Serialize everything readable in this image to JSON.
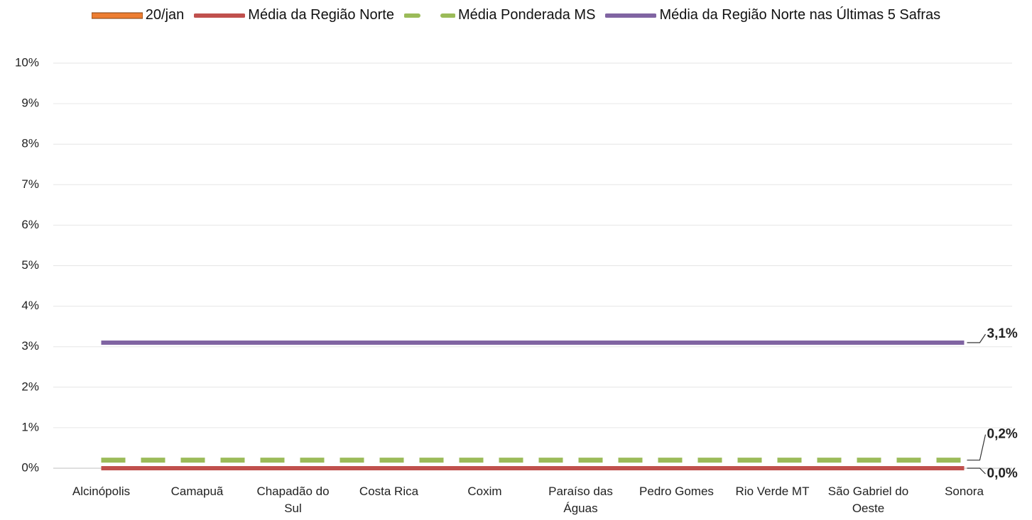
{
  "chart_data": {
    "type": "line",
    "categories": [
      "Alcinópolis",
      "Camapuã",
      "Chapadão do Sul",
      "Costa Rica",
      "Coxim",
      "Paraíso das Águas",
      "Pedro Gomes",
      "Rio Verde MT",
      "São Gabriel do Oeste",
      "Sonora"
    ],
    "series": [
      {
        "name": "20/jan",
        "type": "bar",
        "color": "#ED7D31",
        "values": [
          0,
          0,
          0,
          0,
          0,
          0,
          0,
          0,
          0,
          0
        ]
      },
      {
        "name": "Média da Região Norte",
        "type": "line",
        "color": "#C0504D",
        "dash": false,
        "values": [
          0,
          0,
          0,
          0,
          0,
          0,
          0,
          0,
          0,
          0
        ],
        "value_labels": [
          null,
          null,
          null,
          null,
          null,
          null,
          null,
          null,
          null,
          "0,0%"
        ]
      },
      {
        "name": "Média Ponderada MS",
        "type": "line",
        "color": "#9BBB59",
        "dash": true,
        "values": [
          0.2,
          0.2,
          0.2,
          0.2,
          0.2,
          0.2,
          0.2,
          0.2,
          0.2,
          0.2
        ],
        "value_labels": [
          null,
          null,
          null,
          null,
          null,
          null,
          null,
          null,
          null,
          "0,2%"
        ]
      },
      {
        "name": "Média da Região Norte nas Últimas 5 Safras",
        "type": "line",
        "color": "#8064A2",
        "dash": false,
        "values": [
          3.1,
          3.1,
          3.1,
          3.1,
          3.1,
          3.1,
          3.1,
          3.1,
          3.1,
          3.1
        ],
        "value_labels": [
          null,
          null,
          null,
          null,
          null,
          null,
          null,
          null,
          null,
          "3,1%"
        ]
      }
    ],
    "ylim": [
      0,
      10
    ],
    "yticks": [
      {
        "value": 0,
        "label": "0%"
      },
      {
        "value": 1,
        "label": "1%"
      },
      {
        "value": 2,
        "label": "2%"
      },
      {
        "value": 3,
        "label": "3%"
      },
      {
        "value": 4,
        "label": "4%"
      },
      {
        "value": 5,
        "label": "5%"
      },
      {
        "value": 6,
        "label": "6%"
      },
      {
        "value": 7,
        "label": "7%"
      },
      {
        "value": 8,
        "label": "8%"
      },
      {
        "value": 9,
        "label": "9%"
      },
      {
        "value": 10,
        "label": "10%"
      }
    ],
    "grid": true,
    "legend": "top"
  }
}
